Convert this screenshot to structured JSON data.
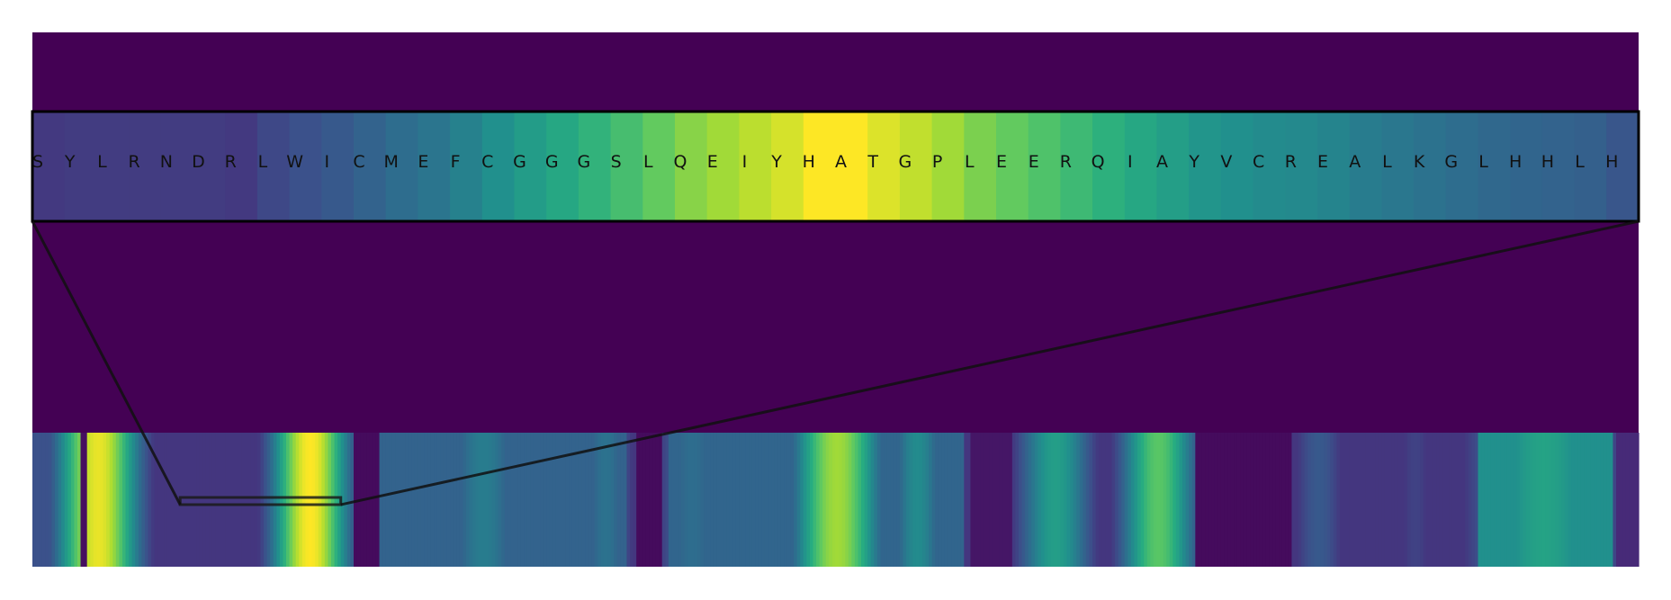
{
  "chart_data": [
    {
      "type": "heatmap",
      "role": "zoomed-window",
      "colormap": "viridis",
      "vmin": 0,
      "vmax": 1,
      "tokens": [
        "S",
        "Y",
        "L",
        "R",
        "N",
        "D",
        "R",
        "L",
        "W",
        "I",
        "C",
        "M",
        "E",
        "F",
        "C",
        "G",
        "G",
        "G",
        "S",
        "L",
        "Q",
        "E",
        "I",
        "Y",
        "H",
        "A",
        "T",
        "G",
        "P",
        "L",
        "E",
        "E",
        "R",
        "Q",
        "I",
        "A",
        "Y",
        "V",
        "C",
        "R",
        "E",
        "A",
        "L",
        "K",
        "G",
        "L",
        "H",
        "H",
        "L",
        "H"
      ],
      "values": [
        0.17,
        0.18,
        0.18,
        0.18,
        0.18,
        0.18,
        0.17,
        0.22,
        0.25,
        0.28,
        0.32,
        0.36,
        0.39,
        0.44,
        0.5,
        0.55,
        0.6,
        0.65,
        0.7,
        0.76,
        0.82,
        0.86,
        0.9,
        0.94,
        1.0,
        1.0,
        0.95,
        0.91,
        0.86,
        0.8,
        0.76,
        0.72,
        0.68,
        0.64,
        0.6,
        0.56,
        0.52,
        0.5,
        0.48,
        0.47,
        0.45,
        0.42,
        0.4,
        0.38,
        0.36,
        0.34,
        0.33,
        0.32,
        0.31,
        0.27
      ]
    },
    {
      "type": "heatmap",
      "role": "full-sequence",
      "colormap": "viridis",
      "vmin": 0,
      "vmax": 1,
      "length": 500,
      "highlight_window": [
        46,
        95
      ],
      "peaks": [
        {
          "center": 20,
          "width": 13,
          "height": 0.97
        },
        {
          "center": 86,
          "width": 12,
          "height": 1.0
        },
        {
          "center": 140,
          "width": 13,
          "height": 0.42
        },
        {
          "center": 178,
          "width": 9,
          "height": 0.38
        },
        {
          "center": 205,
          "width": 12,
          "height": 0.36
        },
        {
          "center": 250,
          "width": 14,
          "height": 0.86
        },
        {
          "center": 275,
          "width": 9,
          "height": 0.48
        },
        {
          "center": 318,
          "width": 12,
          "height": 0.56
        },
        {
          "center": 350,
          "width": 12,
          "height": 0.74
        },
        {
          "center": 400,
          "width": 9,
          "height": 0.28
        },
        {
          "center": 430,
          "width": 7,
          "height": 0.2
        },
        {
          "center": 470,
          "width": 22,
          "height": 0.58
        }
      ],
      "plateaus": [
        {
          "range": [
            0,
            5
          ],
          "value": 0.25
        },
        {
          "range": [
            107,
            185
          ],
          "value": 0.32
        },
        {
          "range": [
            198,
            290
          ],
          "value": 0.33
        },
        {
          "range": [
            450,
            492
          ],
          "value": 0.5
        }
      ],
      "dips": [
        {
          "range": [
            15,
            17
          ],
          "value": 0.04
        },
        {
          "range": [
            100,
            108
          ],
          "value": 0.03
        },
        {
          "range": [
            188,
            196
          ],
          "value": 0.03
        },
        {
          "range": [
            292,
            305
          ],
          "value": 0.06
        },
        {
          "range": [
            362,
            392
          ],
          "value": 0.03
        },
        {
          "range": [
            493,
            500
          ],
          "value": 0.12
        }
      ]
    }
  ]
}
